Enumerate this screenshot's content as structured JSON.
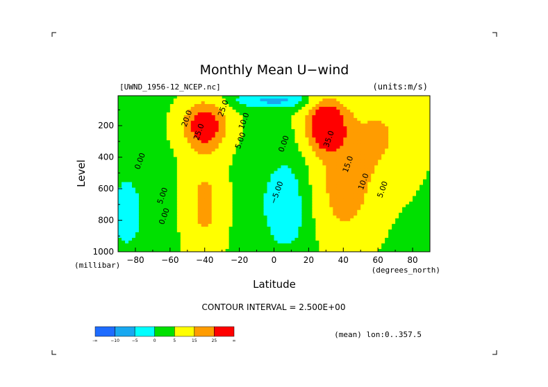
{
  "chart_data": {
    "type": "heatmap",
    "subtype": "filled-contour",
    "title": "Monthly Mean U−wind",
    "dataset_label": "[UWND_1956-12_NCEP.nc]",
    "units_label": "(units:m/s)",
    "xlabel": "Latitude",
    "x_units": "(degrees_north)",
    "ylabel": "Level",
    "y_units": "(millibar)",
    "x_ticks": [
      "−80",
      "−60",
      "−40",
      "−20",
      "0",
      "20",
      "40",
      "60",
      "80"
    ],
    "x_tick_values": [
      -80,
      -60,
      -40,
      -20,
      0,
      20,
      40,
      60,
      80
    ],
    "y_ticks": [
      "200",
      "400",
      "600",
      "800",
      "1000"
    ],
    "y_tick_values": [
      200,
      400,
      600,
      800,
      1000
    ],
    "xlim": [
      -90,
      90
    ],
    "ylim": [
      1000,
      10
    ],
    "contour_interval_text": "CONTOUR INTERVAL = 2.500E+00",
    "averaging_note": "(mean) lon:0..357.5",
    "colorbar": {
      "levels": [
        -99,
        -10,
        -5,
        0,
        5,
        15,
        25,
        99
      ],
      "labels": [
        "-∞",
        "−10",
        "−5",
        "0",
        "5",
        "15",
        "25",
        "∞"
      ],
      "colors": [
        "#1e6cff",
        "#18a8f0",
        "#00ffff",
        "#00e000",
        "#ffff00",
        "#ff9c00",
        "#ff0000"
      ]
    },
    "contour_labels": [
      {
        "text": "25.0",
        "lat": -42,
        "lev": 245
      },
      {
        "text": "20.0",
        "lat": -49,
        "lev": 160
      },
      {
        "text": "10.0",
        "lat": -16,
        "lev": 175
      },
      {
        "text": "5.00",
        "lat": -18,
        "lev": 300
      },
      {
        "text": "0.00",
        "lat": -76,
        "lev": 430
      },
      {
        "text": "5.00",
        "lat": -63,
        "lev": 650
      },
      {
        "text": "0.00",
        "lat": -62,
        "lev": 780
      },
      {
        "text": "0.00",
        "lat": 7,
        "lev": 320
      },
      {
        "text": "−5.00",
        "lat": 3,
        "lev": 630
      },
      {
        "text": "35.0",
        "lat": 33,
        "lev": 290
      },
      {
        "text": "15.0",
        "lat": 44,
        "lev": 450
      },
      {
        "text": "10.0",
        "lat": 53,
        "lev": 560
      },
      {
        "text": "5.00",
        "lat": 64,
        "lev": 610
      },
      {
        "text": "25.0",
        "lat": -28,
        "lev": 95
      }
    ],
    "jets": [
      {
        "name": "southern_jet",
        "lat": -40,
        "lev": 200,
        "max": 30
      },
      {
        "name": "northern_jet",
        "lat": 30,
        "lev": 200,
        "max": 37
      }
    ],
    "grid": false,
    "legend": "bottom-left colorbar"
  }
}
